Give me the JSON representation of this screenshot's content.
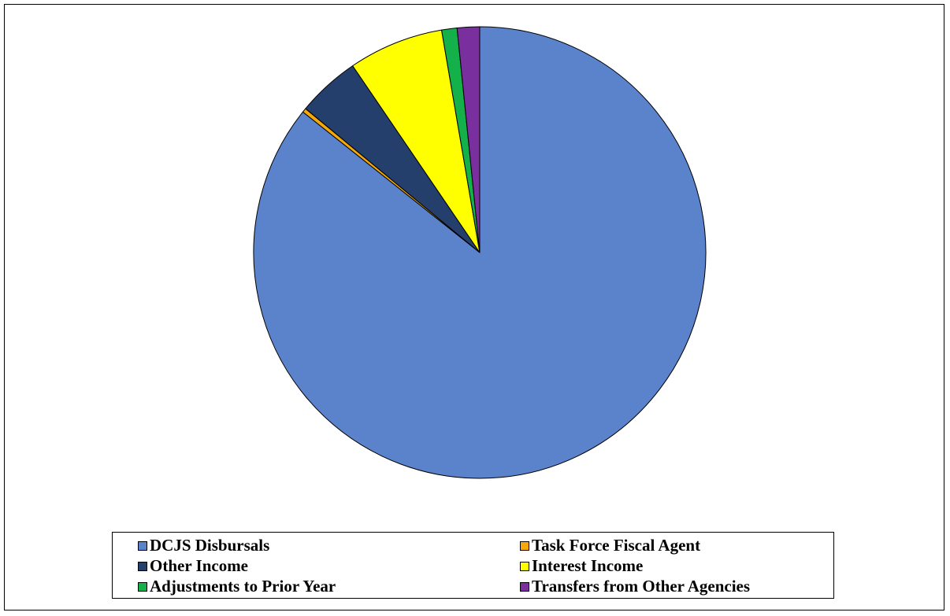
{
  "chart_data": {
    "type": "pie",
    "title": "",
    "legend_position": "bottom",
    "slices": [
      {
        "label": "DCJS Disbursals",
        "value": 85.7,
        "color": "#5B83CB"
      },
      {
        "label": "Task Force Fiscal Agent",
        "value": 0.3,
        "color": "#F5A80A"
      },
      {
        "label": "Other Income",
        "value": 4.5,
        "color": "#243F6B"
      },
      {
        "label": "Interest Income",
        "value": 6.8,
        "color": "#FFFF00"
      },
      {
        "label": "Adjustments to Prior Year",
        "value": 1.1,
        "color": "#14B04A"
      },
      {
        "label": "Transfers from Other Agencies",
        "value": 1.6,
        "color": "#7A2F9E"
      }
    ]
  }
}
